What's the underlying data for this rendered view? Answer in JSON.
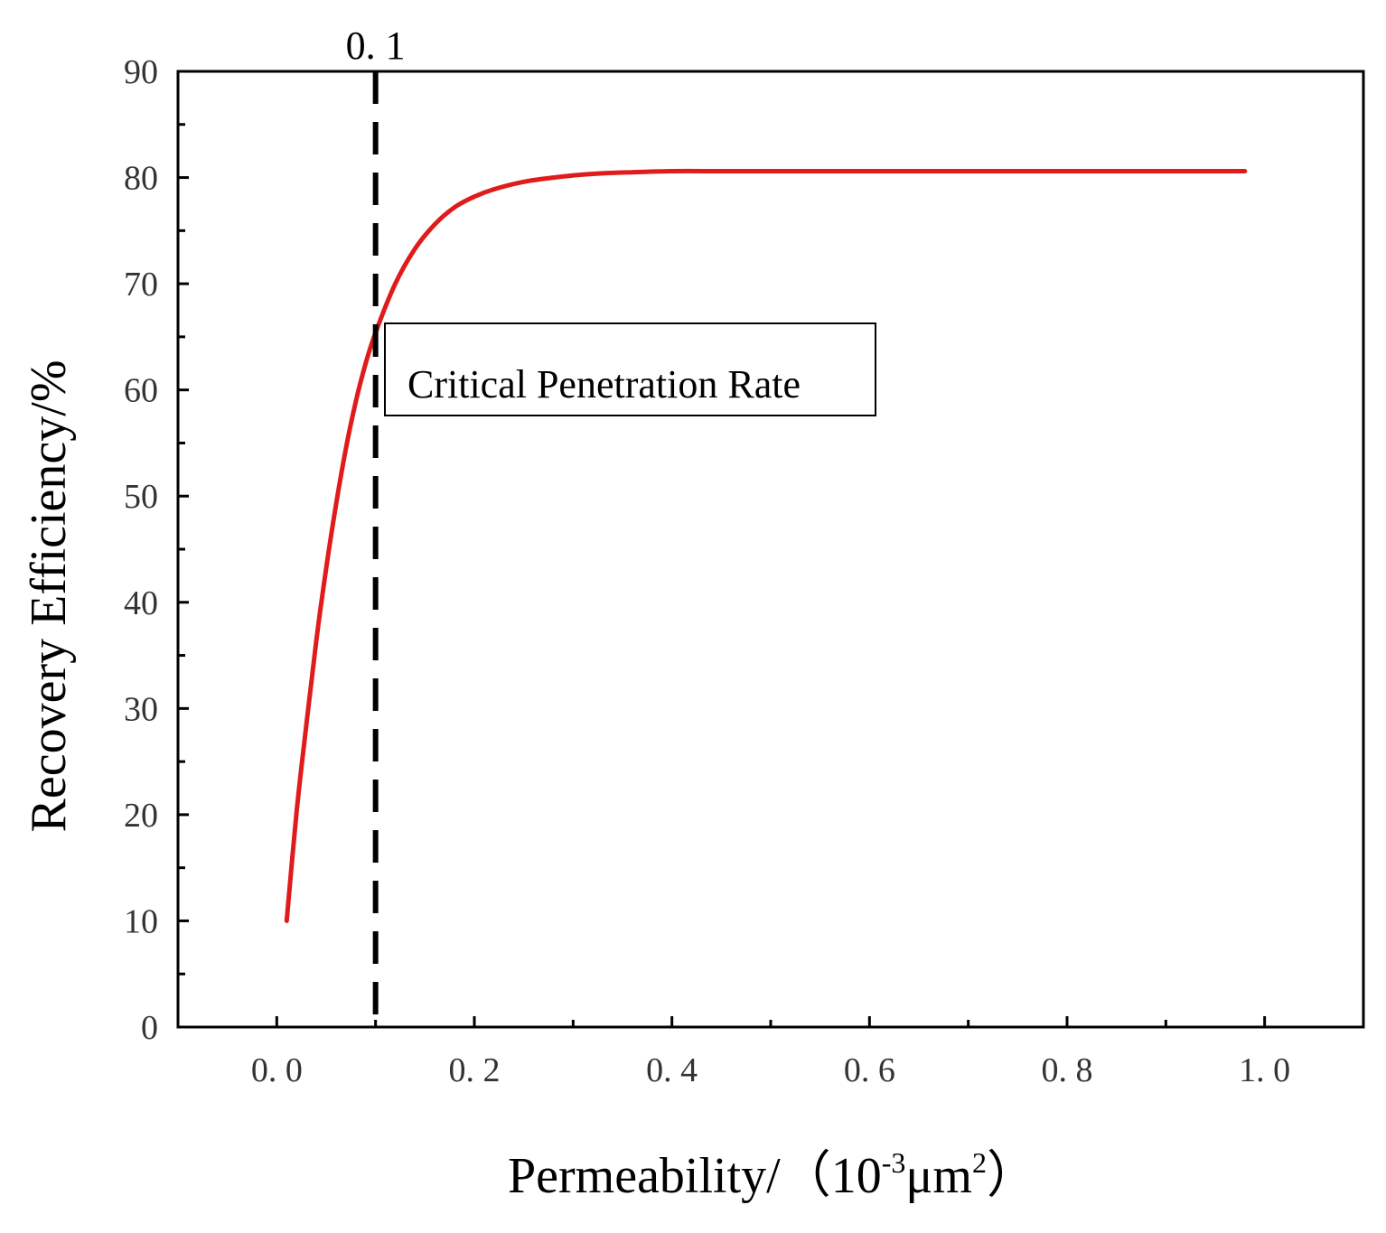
{
  "chart_data": {
    "type": "line",
    "title": "",
    "xlabel": {
      "main": "Permeability/（10",
      "exp1": "-3",
      "unit": "μm",
      "exp2": "2",
      "close": "）"
    },
    "ylabel": "Recovery Efficiency/%",
    "xlim": [
      -0.1,
      1.1
    ],
    "ylim": [
      0,
      90
    ],
    "x_ticks": [
      "0.0",
      "0.2",
      "0.4",
      "0.6",
      "0.8",
      "1.0"
    ],
    "y_ticks": [
      "0",
      "10",
      "20",
      "30",
      "40",
      "50",
      "60",
      "70",
      "80",
      "90"
    ],
    "series": [
      {
        "name": "Recovery Efficiency",
        "color": "#e01b1b",
        "x": [
          0.01,
          0.02,
          0.03,
          0.04,
          0.05,
          0.06,
          0.07,
          0.08,
          0.09,
          0.1,
          0.12,
          0.14,
          0.16,
          0.18,
          0.2,
          0.22,
          0.25,
          0.28,
          0.3,
          0.33,
          0.36,
          0.4,
          0.45,
          0.5,
          0.6,
          0.7,
          0.8,
          0.9,
          0.98
        ],
        "y": [
          10.0,
          20.2,
          28.5,
          36.4,
          43.2,
          49.2,
          54.5,
          58.9,
          62.5,
          65.4,
          70.0,
          73.3,
          75.6,
          77.2,
          78.2,
          78.9,
          79.6,
          80.0,
          80.2,
          80.4,
          80.5,
          80.6,
          80.6,
          80.6,
          80.6,
          80.6,
          80.6,
          80.6,
          80.6
        ]
      }
    ],
    "reference_line": {
      "x": 0.1,
      "label": "0. 1",
      "style": "dashed",
      "color": "#000000"
    },
    "annotation": {
      "text": "Critical Penetration Rate"
    },
    "grid": false
  }
}
